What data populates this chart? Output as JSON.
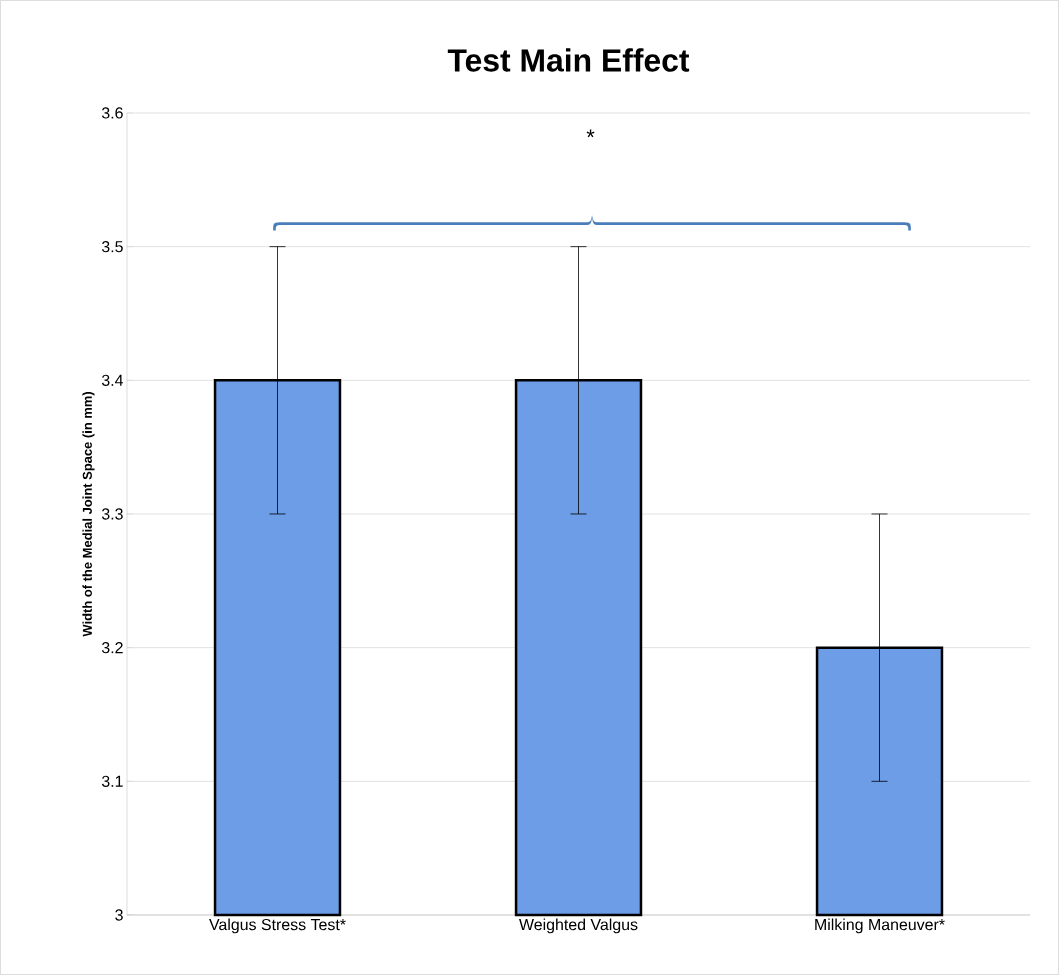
{
  "chart_data": {
    "type": "bar",
    "title": "Test Main Effect",
    "ylabel": "Width of the Medial Joint Space (in mm)",
    "categories": [
      "Valgus Stress Test*",
      "Weighted Valgus",
      "Milking Maneuver*"
    ],
    "values": [
      3.4,
      3.4,
      3.2
    ],
    "errors": [
      0.1,
      0.1,
      0.1
    ],
    "color": "#6d9de6",
    "ylim": [
      3,
      3.6
    ],
    "yticks": [
      {
        "value": 3,
        "label": "3"
      },
      3.1,
      3.2,
      3.3,
      3.4,
      3.5,
      3.6
    ],
    "grid": "y",
    "annotations": [
      "*"
    ]
  }
}
